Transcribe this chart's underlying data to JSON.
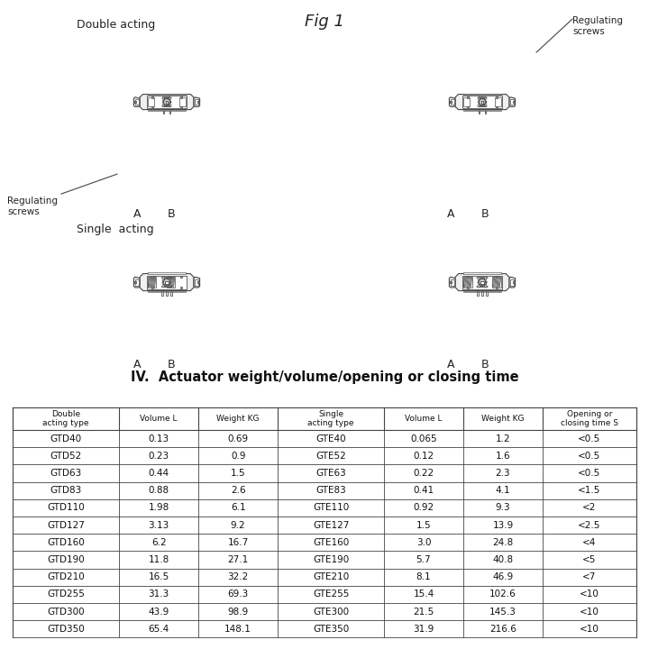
{
  "title_fig": "Fig 1",
  "table_title": "IV.  Actuator weight/volume/opening or closing time",
  "col_headers": [
    "Double\nacting type",
    "Volume L",
    "Weight KG",
    "Single\nacting type",
    "Volume L",
    "Weight KG",
    "Opening or\nclosing time S"
  ],
  "rows": [
    [
      "GTD40",
      "0.13",
      "0.69",
      "GTE40",
      "0.065",
      "1.2",
      "<0.5"
    ],
    [
      "GTD52",
      "0.23",
      "0.9",
      "GTE52",
      "0.12",
      "1.6",
      "<0.5"
    ],
    [
      "GTD63",
      "0.44",
      "1.5",
      "GTE63",
      "0.22",
      "2.3",
      "<0.5"
    ],
    [
      "GTD83",
      "0.88",
      "2.6",
      "GTE83",
      "0.41",
      "4.1",
      "<1.5"
    ],
    [
      "GTD110",
      "1.98",
      "6.1",
      "GTE110",
      "0.92",
      "9.3",
      "<2"
    ],
    [
      "GTD127",
      "3.13",
      "9.2",
      "GTE127",
      "1.5",
      "13.9",
      "<2.5"
    ],
    [
      "GTD160",
      "6.2",
      "16.7",
      "GTE160",
      "3.0",
      "24.8",
      "<4"
    ],
    [
      "GTD190",
      "11.8",
      "27.1",
      "GTE190",
      "5.7",
      "40.8",
      "<5"
    ],
    [
      "GTD210",
      "16.5",
      "32.2",
      "GTE210",
      "8.1",
      "46.9",
      "<7"
    ],
    [
      "GTD255",
      "31.3",
      "69.3",
      "GTE255",
      "15.4",
      "102.6",
      "<10"
    ],
    [
      "GTD300",
      "43.9",
      "98.9",
      "GTE300",
      "21.5",
      "145.3",
      "<10"
    ],
    [
      "GTD350",
      "65.4",
      "148.1",
      "GTE350",
      "31.9",
      "216.6",
      "<10"
    ]
  ],
  "label_double_acting": "Double acting",
  "label_single_acting": "Single  acting",
  "label_reg_screws": "Regulating\nscrews",
  "lc": "#444444",
  "fc_body": "#f0f0f0",
  "fc_white": "#ffffff",
  "fc_gray": "#cccccc",
  "fc_dgray": "#aaaaaa"
}
